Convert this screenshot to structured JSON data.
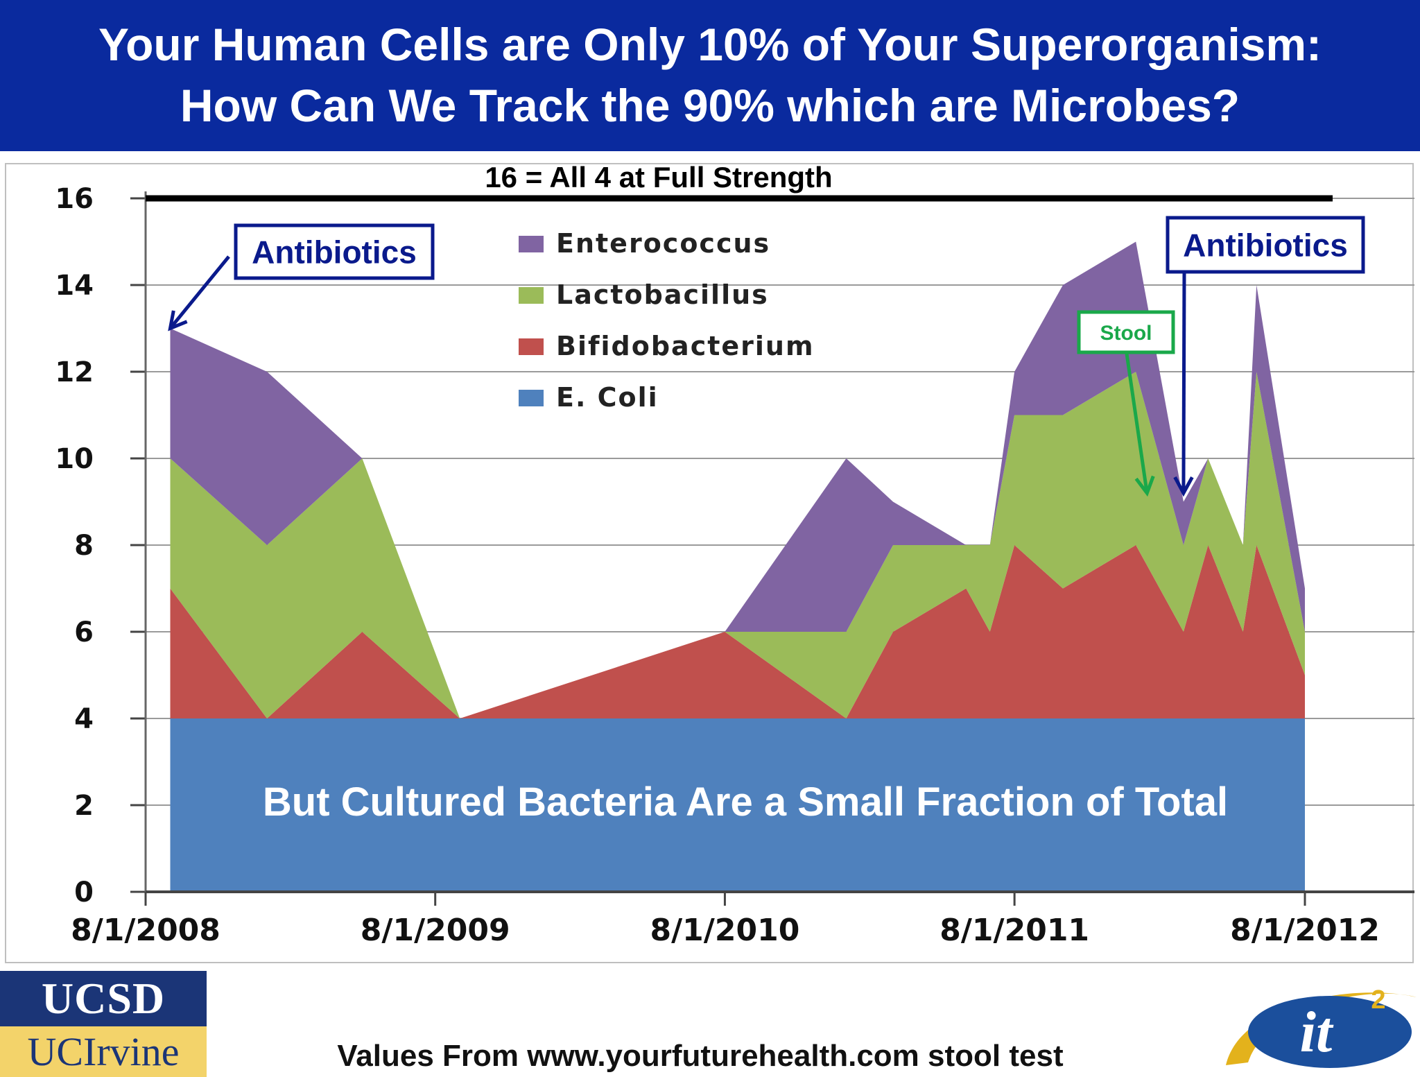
{
  "banner": {
    "line1": "Your Human Cells are Only 10% of Your Superorganism:",
    "line2": "How Can We Track the 90% which are Microbes?"
  },
  "chart_data": {
    "type": "area",
    "stacked": true,
    "title": "16 = All 4 at Full Strength",
    "overlay_text": "But Cultured Bacteria Are a Small Fraction of Total",
    "ylim": [
      0,
      16
    ],
    "yticks": [
      0,
      2,
      4,
      6,
      8,
      10,
      12,
      14,
      16
    ],
    "xlim": [
      "2008-08-01",
      "2012-08-01"
    ],
    "xticks": [
      "8/1/2008",
      "8/1/2009",
      "8/1/2010",
      "8/1/2011",
      "8/1/2012"
    ],
    "reference_line": {
      "y": 16
    },
    "legend_position": "top-center",
    "grid": true,
    "x": [
      "2008-09-01",
      "2009-01-01",
      "2009-05-01",
      "2009-09-01",
      "2010-08-01",
      "2011-01-01",
      "2011-03-01",
      "2011-06-01",
      "2011-07-01",
      "2011-08-01",
      "2011-10-01",
      "2012-01-01",
      "2012-03-01",
      "2012-04-01",
      "2012-05-15",
      "2012-06-01",
      "2012-08-01"
    ],
    "series": [
      {
        "name": "E. Coli",
        "color": "#4f81bd",
        "values": [
          4,
          4,
          4,
          4,
          4,
          4,
          4,
          4,
          4,
          4,
          4,
          4,
          4,
          4,
          4,
          4,
          4
        ]
      },
      {
        "name": "Bifidobacterium",
        "color": "#c0504d",
        "values": [
          3,
          0,
          2,
          0,
          2,
          0,
          2,
          3,
          2,
          4,
          3,
          4,
          2,
          4,
          2,
          4,
          1
        ]
      },
      {
        "name": "Lactobacillus",
        "color": "#9bbb59",
        "values": [
          3,
          4,
          4,
          0,
          0,
          2,
          2,
          1,
          2,
          3,
          4,
          4,
          2,
          2,
          2,
          4,
          1
        ]
      },
      {
        "name": "Enterococcus",
        "color": "#8064a2",
        "values": [
          3,
          4,
          0,
          0,
          0,
          4,
          1,
          0,
          0,
          1,
          3,
          3,
          1,
          0,
          0,
          2,
          1
        ]
      }
    ],
    "annotations": [
      {
        "text": "Antibiotics",
        "color": "#0a1a8c",
        "target": {
          "x": "2008-09-01",
          "y": 13
        }
      },
      {
        "text": "Antibiotics",
        "color": "#0a1a8c",
        "target": {
          "x": "2012-03-01",
          "y": 9.2
        }
      },
      {
        "text": "Stool",
        "color": "#1aa84a",
        "target": {
          "x": "2012-01-15",
          "y": 9.2
        }
      }
    ]
  },
  "footer": {
    "ucsd": "UCSD",
    "uci": "UCIrvine",
    "source": "Values From www.yourfuturehealth.com stool test",
    "logo_text": "it",
    "logo_sup": "2"
  }
}
